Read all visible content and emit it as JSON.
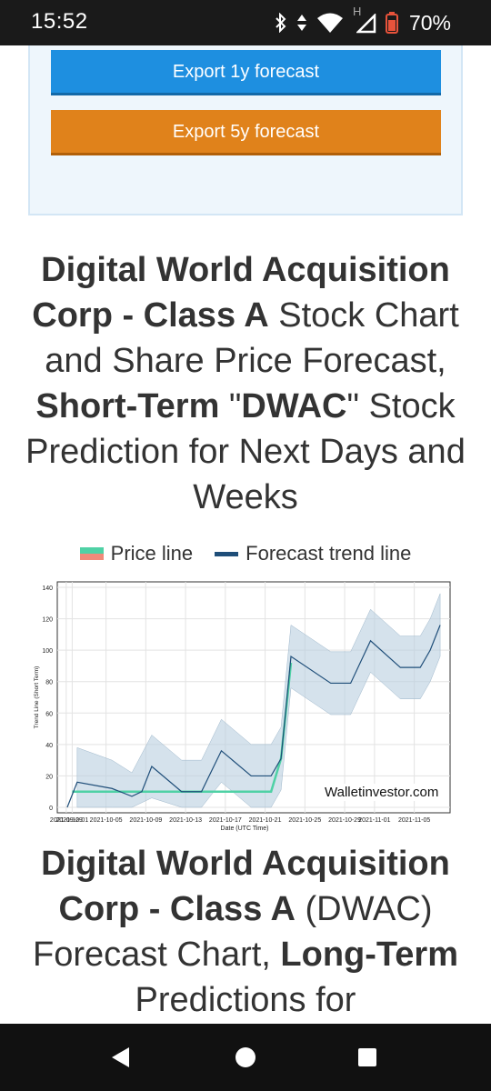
{
  "status_bar": {
    "time": "15:52",
    "battery": "70%",
    "network_label": "H",
    "icons": [
      "bluetooth-icon",
      "data-arrows-icon",
      "wifi-icon",
      "signal-icon",
      "battery-icon"
    ]
  },
  "export_buttons": {
    "one_year": "Export 1y forecast",
    "five_year": "Export 5y forecast"
  },
  "heading1": {
    "part1": "Digital World Acquisition Corp - Class A",
    "part2": " Stock Chart and Share Price Forecast, ",
    "part3": "Short-Term",
    "part4": " \"",
    "part5": "DWAC",
    "part6": "\" Stock Prediction for Next Days and Weeks"
  },
  "legend": {
    "price": "Price line",
    "forecast": "Forecast trend line"
  },
  "watermark": "Walletinvestor.com",
  "chart_data": {
    "type": "line",
    "xlabel": "Date (UTC Time)",
    "ylabel": "Trend Line (Short Term)",
    "ylim": [
      0,
      140
    ],
    "yticks": [
      0,
      20,
      40,
      60,
      80,
      100,
      120,
      140
    ],
    "xticks": [
      "2021-09-29",
      "2021-10-01",
      "2021-10-05",
      "2021-10-09",
      "2021-10-13",
      "2021-10-17",
      "2021-10-21",
      "2021-10-25",
      "2021-10-29",
      "2021-11-01",
      "2021-11-05"
    ],
    "grid": true,
    "series": [
      {
        "name": "Price line",
        "color": "#4fd1a5",
        "points": [
          [
            0,
            10
          ],
          [
            2,
            10
          ],
          [
            6,
            10
          ],
          [
            10,
            10
          ],
          [
            14,
            10
          ],
          [
            18,
            10
          ],
          [
            20,
            10
          ],
          [
            21,
            31
          ],
          [
            22,
            92
          ]
        ]
      },
      {
        "name": "Forecast trend line",
        "color": "#1f4e79",
        "points": [
          [
            -0.5,
            0
          ],
          [
            0.5,
            16
          ],
          [
            4,
            12
          ],
          [
            6,
            7
          ],
          [
            7,
            10
          ],
          [
            8,
            26
          ],
          [
            11,
            10
          ],
          [
            13,
            10
          ],
          [
            15,
            36
          ],
          [
            18,
            20
          ],
          [
            20,
            20
          ],
          [
            21,
            31
          ],
          [
            22,
            96
          ],
          [
            26,
            79
          ],
          [
            28,
            79
          ],
          [
            30,
            106
          ],
          [
            33,
            89
          ],
          [
            35,
            89
          ],
          [
            36,
            100
          ],
          [
            37,
            116
          ]
        ]
      }
    ],
    "band": {
      "upper": [
        [
          0.5,
          38
        ],
        [
          4,
          30
        ],
        [
          6,
          22
        ],
        [
          8,
          46
        ],
        [
          11,
          30
        ],
        [
          13,
          30
        ],
        [
          15,
          56
        ],
        [
          18,
          40
        ],
        [
          20,
          40
        ],
        [
          21,
          51
        ],
        [
          22,
          116
        ],
        [
          26,
          99
        ],
        [
          28,
          99
        ],
        [
          30,
          126
        ],
        [
          33,
          109
        ],
        [
          35,
          109
        ],
        [
          36,
          120
        ],
        [
          37,
          136
        ]
      ],
      "lower": [
        [
          0.5,
          0
        ],
        [
          4,
          0
        ],
        [
          6,
          0
        ],
        [
          8,
          6
        ],
        [
          11,
          0
        ],
        [
          13,
          0
        ],
        [
          15,
          16
        ],
        [
          18,
          0
        ],
        [
          20,
          0
        ],
        [
          21,
          11
        ],
        [
          22,
          76
        ],
        [
          26,
          59
        ],
        [
          28,
          59
        ],
        [
          30,
          86
        ],
        [
          33,
          69
        ],
        [
          35,
          69
        ],
        [
          36,
          80
        ],
        [
          37,
          96
        ]
      ],
      "color": "#b9cfe0"
    }
  },
  "heading2": {
    "part1": "Digital World Acquisition Corp - Class A",
    "part2": " (DWAC) Forecast Chart, ",
    "part3": "Long-Term",
    "part4": " Predictions for"
  },
  "nav": {
    "back": "back-icon",
    "home": "home-icon",
    "recents": "recents-icon"
  }
}
